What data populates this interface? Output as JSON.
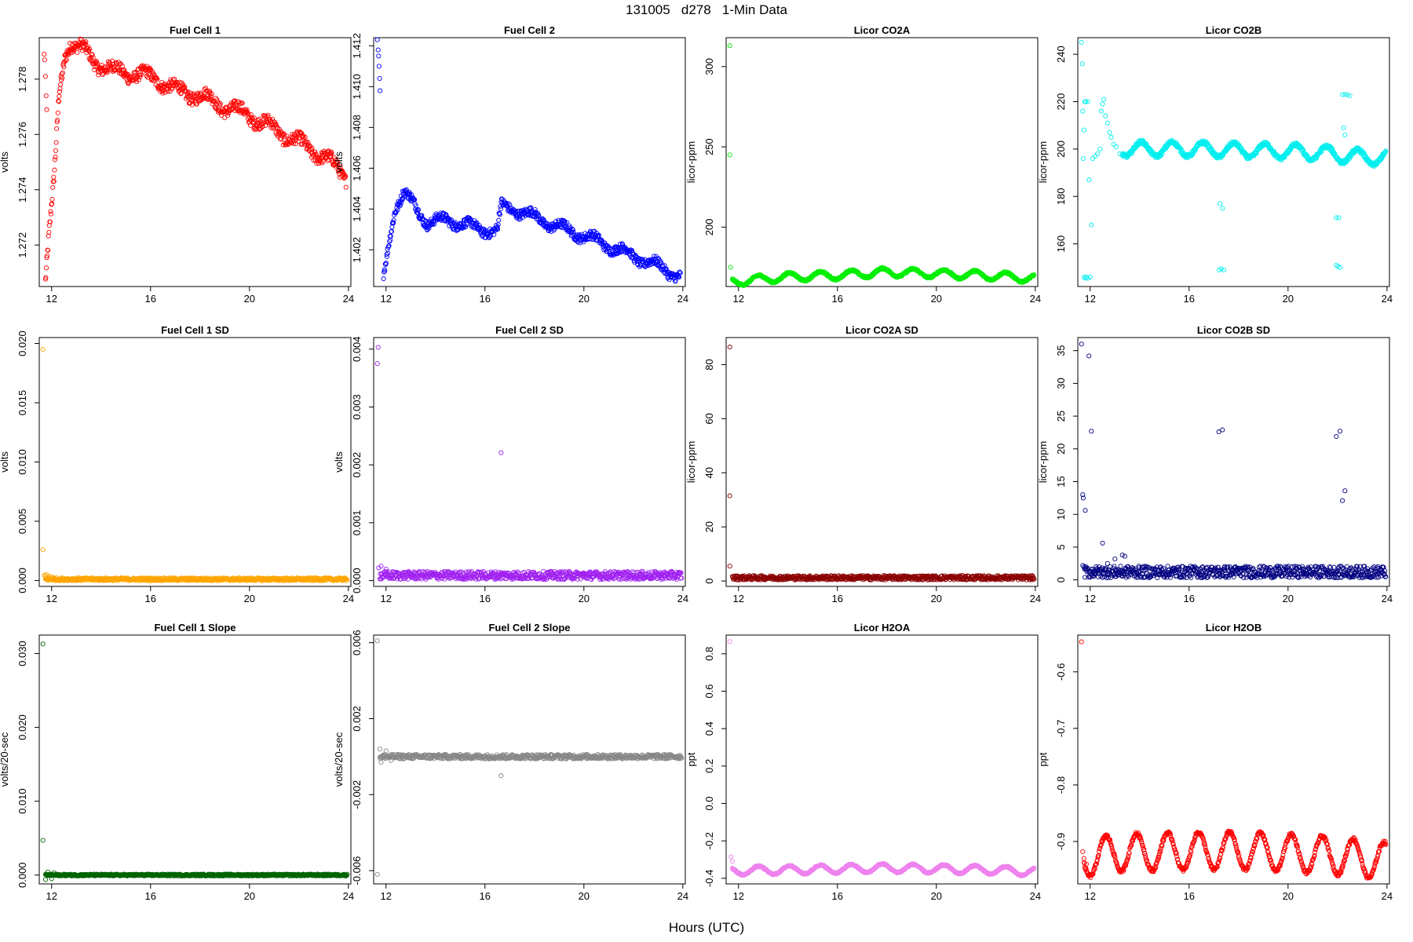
{
  "figure": {
    "title": "131005   d278   1-Min Data",
    "xlabel": "Hours (UTC)"
  },
  "chart_data": [
    {
      "type": "scatter",
      "title": "Fuel Cell 1",
      "ylabel": "volts",
      "color": "#ff0000",
      "xlim": [
        11.5,
        24.1
      ],
      "ylim": [
        1.2705,
        1.2795
      ],
      "xticks": [
        12,
        16,
        20,
        24
      ],
      "yticks": [
        1.272,
        1.274,
        1.276,
        1.278
      ],
      "ytick_labels": [
        "1.272",
        "1.274",
        "1.276",
        "1.278"
      ],
      "shape": {
        "kind": "trend",
        "points": [
          [
            11.75,
            1.2707
          ],
          [
            11.9,
            1.2725
          ],
          [
            12.1,
            1.2745
          ],
          [
            12.3,
            1.2775
          ],
          [
            12.55,
            1.2788
          ],
          [
            12.8,
            1.2792
          ],
          [
            13.2,
            1.2791
          ],
          [
            13.8,
            1.2786
          ],
          [
            14.5,
            1.2783
          ],
          [
            15.3,
            1.2782
          ],
          [
            16.3,
            1.278
          ],
          [
            17.0,
            1.2776
          ],
          [
            18.0,
            1.2774
          ],
          [
            19.0,
            1.277
          ],
          [
            20.0,
            1.2767
          ],
          [
            21.0,
            1.2762
          ],
          [
            22.0,
            1.2757
          ],
          [
            23.0,
            1.2752
          ],
          [
            23.9,
            1.2745
          ]
        ],
        "band": 0.00022,
        "wave_amp": 0.0002,
        "wave_period": 1.25,
        "wave_start": 13.0
      },
      "outliers": [
        [
          11.7,
          1.2789
        ],
        [
          11.72,
          1.2787
        ],
        [
          11.75,
          1.2781
        ],
        [
          11.78,
          1.2774
        ],
        [
          11.8,
          1.2769
        ]
      ]
    },
    {
      "type": "scatter",
      "title": "Fuel Cell 2",
      "ylabel": "volts",
      "color": "#0000ff",
      "xlim": [
        11.5,
        24.1
      ],
      "ylim": [
        1.4002,
        1.4124
      ],
      "xticks": [
        12,
        16,
        20,
        24
      ],
      "yticks": [
        1.402,
        1.404,
        1.406,
        1.408,
        1.41,
        1.412
      ],
      "ytick_labels": [
        "1.402",
        "1.404",
        "1.406",
        "1.408",
        "1.410",
        "1.412"
      ],
      "shape": {
        "kind": "trend",
        "points": [
          [
            11.9,
            1.4008
          ],
          [
            12.1,
            1.4022
          ],
          [
            12.35,
            1.4038
          ],
          [
            12.7,
            1.4047
          ],
          [
            13.1,
            1.4043
          ],
          [
            13.7,
            1.4033
          ],
          [
            14.5,
            1.4035
          ],
          [
            15.5,
            1.4031
          ],
          [
            16.5,
            1.4029
          ],
          [
            16.65,
            1.4041
          ],
          [
            17.2,
            1.404
          ],
          [
            18.0,
            1.4036
          ],
          [
            19.0,
            1.4031
          ],
          [
            20.0,
            1.4027
          ],
          [
            21.0,
            1.4022
          ],
          [
            22.0,
            1.4017
          ],
          [
            23.0,
            1.4012
          ],
          [
            23.9,
            1.4007
          ]
        ],
        "band": 0.00022,
        "wave_amp": 0.00022,
        "wave_period": 1.25,
        "wave_start": 12.6
      },
      "outliers": [
        [
          11.65,
          1.4123
        ],
        [
          11.68,
          1.4118
        ],
        [
          11.7,
          1.4115
        ],
        [
          11.72,
          1.411
        ],
        [
          11.74,
          1.4104
        ],
        [
          11.76,
          1.4098
        ]
      ]
    },
    {
      "type": "scatter",
      "title": "Licor CO2A",
      "ylabel": "licor-ppm",
      "color": "#00ee00",
      "xlim": [
        11.5,
        24.1
      ],
      "ylim": [
        163,
        318
      ],
      "xticks": [
        12,
        16,
        20,
        24
      ],
      "yticks": [
        200,
        250,
        300
      ],
      "ytick_labels": [
        "200",
        "250",
        "300"
      ],
      "shape": {
        "kind": "wave",
        "base": [
          [
            11.75,
            166
          ],
          [
            12.5,
            167
          ],
          [
            14.0,
            169
          ],
          [
            16.0,
            170
          ],
          [
            18.0,
            172
          ],
          [
            20.0,
            171
          ],
          [
            22.0,
            170
          ],
          [
            24.0,
            168
          ]
        ],
        "amp": 2.5,
        "period": 1.25,
        "band": 0.6
      },
      "outliers": [
        [
          11.65,
          313
        ],
        [
          11.65,
          245
        ],
        [
          11.68,
          175
        ]
      ]
    },
    {
      "type": "scatter",
      "title": "Licor CO2B",
      "ylabel": "licor-ppm",
      "color": "#00eeee",
      "xlim": [
        11.5,
        24.1
      ],
      "ylim": [
        142,
        247
      ],
      "xticks": [
        12,
        16,
        20,
        24
      ],
      "yticks": [
        160,
        180,
        200,
        220,
        240
      ],
      "ytick_labels": [
        "160",
        "180",
        "200",
        "220",
        "240"
      ],
      "shape": {
        "kind": "wave",
        "base": [
          [
            13.5,
            200
          ],
          [
            16,
            200
          ],
          [
            20,
            199
          ],
          [
            21.8,
            198
          ],
          [
            22.5,
            197
          ],
          [
            24,
            196
          ]
        ],
        "amp": 3.0,
        "period": 1.25,
        "band": 0.8,
        "start": 13.3
      },
      "outliers": [
        [
          11.65,
          245
        ],
        [
          11.68,
          236
        ],
        [
          11.7,
          216
        ],
        [
          11.72,
          196
        ],
        [
          11.75,
          208
        ],
        [
          11.78,
          220
        ],
        [
          11.82,
          220
        ],
        [
          11.9,
          220
        ],
        [
          11.95,
          187
        ],
        [
          12.05,
          168
        ],
        [
          12.1,
          196
        ],
        [
          12.2,
          197
        ],
        [
          12.3,
          198
        ],
        [
          12.4,
          200
        ],
        [
          12.45,
          216
        ],
        [
          12.5,
          219
        ],
        [
          12.55,
          221
        ],
        [
          12.62,
          214
        ],
        [
          12.7,
          211
        ],
        [
          12.78,
          207
        ],
        [
          12.85,
          205
        ],
        [
          12.95,
          202
        ],
        [
          13.05,
          201
        ],
        [
          13.2,
          198
        ],
        [
          11.75,
          146
        ],
        [
          11.8,
          145.5
        ],
        [
          11.85,
          146
        ],
        [
          11.9,
          145.5
        ],
        [
          12.0,
          146
        ],
        [
          17.25,
          177
        ],
        [
          17.35,
          175
        ],
        [
          17.22,
          149
        ],
        [
          17.3,
          149.5
        ],
        [
          17.4,
          149
        ],
        [
          21.95,
          171
        ],
        [
          22.05,
          171
        ],
        [
          21.95,
          151
        ],
        [
          22.02,
          150.5
        ],
        [
          22.1,
          150
        ],
        [
          22.25,
          209
        ],
        [
          22.3,
          206
        ],
        [
          22.2,
          223
        ],
        [
          22.3,
          223
        ],
        [
          22.4,
          223
        ],
        [
          22.5,
          222.5
        ]
      ]
    },
    {
      "type": "scatter",
      "title": "Fuel Cell 1 SD",
      "ylabel": "volts",
      "color": "#ffa500",
      "xlim": [
        11.5,
        24.1
      ],
      "ylim": [
        -0.0005,
        0.0205
      ],
      "xticks": [
        12,
        16,
        20,
        24
      ],
      "yticks": [
        0,
        0.005,
        0.01,
        0.015,
        0.02
      ],
      "ytick_labels": [
        "0.000",
        "0.005",
        "0.010",
        "0.015",
        "0.020"
      ],
      "shape": {
        "kind": "flat",
        "level": 0.0001,
        "band": 0.00012
      },
      "outliers": [
        [
          11.65,
          0.0195
        ],
        [
          11.65,
          0.0026
        ],
        [
          11.7,
          0.00045
        ],
        [
          11.75,
          0.0004
        ],
        [
          11.8,
          0.0005
        ],
        [
          11.9,
          0.00035
        ],
        [
          12.0,
          0.0003
        ],
        [
          12.1,
          0.00025
        ]
      ]
    },
    {
      "type": "scatter",
      "title": "Fuel Cell 2 SD",
      "ylabel": "volts",
      "color": "#a020f0",
      "xlim": [
        11.5,
        24.1
      ],
      "ylim": [
        -0.0001,
        0.0042
      ],
      "xticks": [
        12,
        16,
        20,
        24
      ],
      "yticks": [
        0,
        0.001,
        0.002,
        0.003,
        0.004
      ],
      "ytick_labels": [
        "0.000",
        "0.001",
        "0.002",
        "0.003",
        "0.004"
      ],
      "shape": {
        "kind": "flat",
        "level": 9e-05,
        "band": 7e-05
      },
      "outliers": [
        [
          11.68,
          0.00403
        ],
        [
          11.65,
          0.00375
        ],
        [
          16.65,
          0.00221
        ],
        [
          11.7,
          0.00022
        ],
        [
          11.8,
          0.00025
        ],
        [
          12.0,
          0.0002
        ]
      ]
    },
    {
      "type": "scatter",
      "title": "Licor CO2A SD",
      "ylabel": "licor-ppm",
      "color": "#8b0000",
      "xlim": [
        11.5,
        24.1
      ],
      "ylim": [
        -2,
        90
      ],
      "xticks": [
        12,
        16,
        20,
        24
      ],
      "yticks": [
        0,
        20,
        40,
        60,
        80
      ],
      "ytick_labels": [
        "0",
        "20",
        "40",
        "60",
        "80"
      ],
      "shape": {
        "kind": "flat",
        "level": 1.2,
        "band": 0.8
      },
      "outliers": [
        [
          11.65,
          86.5
        ],
        [
          11.65,
          31.5
        ],
        [
          11.65,
          5.5
        ]
      ]
    },
    {
      "type": "scatter",
      "title": "Licor CO2B SD",
      "ylabel": "licor-ppm",
      "color": "#000080",
      "xlim": [
        11.5,
        24.1
      ],
      "ylim": [
        -1,
        37
      ],
      "xticks": [
        12,
        16,
        20,
        24
      ],
      "yticks": [
        0,
        5,
        10,
        15,
        20,
        25,
        30,
        35
      ],
      "ytick_labels": [
        "0",
        "5",
        "10",
        "15",
        "20",
        "25",
        "30",
        "35"
      ],
      "shape": {
        "kind": "flat",
        "level": 1.2,
        "band": 0.9
      },
      "outliers": [
        [
          11.65,
          36
        ],
        [
          11.95,
          34.2
        ],
        [
          12.05,
          22.7
        ],
        [
          11.7,
          13
        ],
        [
          11.72,
          12.5
        ],
        [
          11.8,
          10.6
        ],
        [
          12.5,
          5.6
        ],
        [
          13.3,
          3.8
        ],
        [
          13.4,
          3.6
        ],
        [
          13.0,
          3.2
        ],
        [
          12.7,
          2.5
        ],
        [
          11.7,
          2.2
        ],
        [
          17.2,
          22.6
        ],
        [
          17.35,
          22.9
        ],
        [
          21.95,
          21.9
        ],
        [
          22.1,
          22.7
        ],
        [
          22.2,
          12.1
        ],
        [
          22.3,
          13.6
        ]
      ]
    },
    {
      "type": "scatter",
      "title": "Fuel Cell 1 Slope",
      "ylabel": "volts/20-sec",
      "color": "#006400",
      "xlim": [
        11.5,
        24.1
      ],
      "ylim": [
        -0.0012,
        0.0325
      ],
      "xticks": [
        12,
        16,
        20,
        24
      ],
      "yticks": [
        0,
        0.01,
        0.02,
        0.03
      ],
      "ytick_labels": [
        "0.000",
        "0.010",
        "0.020",
        "0.030"
      ],
      "shape": {
        "kind": "flat",
        "level": 0,
        "band": 0.00012
      },
      "outliers": [
        [
          11.65,
          0.0313
        ],
        [
          11.65,
          0.0047
        ],
        [
          11.75,
          -0.0006
        ],
        [
          11.85,
          0.0004
        ],
        [
          12.0,
          -0.0005
        ],
        [
          12.1,
          0.0003
        ]
      ]
    },
    {
      "type": "scatter",
      "title": "Fuel Cell 2 Slope",
      "ylabel": "volts/20-sec",
      "color": "#888888",
      "xlim": [
        11.5,
        24.1
      ],
      "ylim": [
        -0.0067,
        0.0064
      ],
      "xticks": [
        12,
        16,
        20,
        24
      ],
      "yticks": [
        -0.006,
        -0.002,
        0.002,
        0.006
      ],
      "ytick_labels": [
        "-0.006",
        "-0.002",
        "0.002",
        "0.006"
      ],
      "shape": {
        "kind": "flat",
        "level": 0,
        "band": 0.00012
      },
      "outliers": [
        [
          11.65,
          0.0061
        ],
        [
          11.65,
          -0.0062
        ],
        [
          16.65,
          -0.001
        ],
        [
          11.75,
          0.0004
        ],
        [
          11.8,
          -0.0003
        ],
        [
          12.0,
          0.0003
        ],
        [
          12.2,
          -0.0002
        ]
      ]
    },
    {
      "type": "scatter",
      "title": "Licor H2OA",
      "ylabel": "ppt",
      "color": "#ee82ee",
      "xlim": [
        11.5,
        24.1
      ],
      "ylim": [
        -0.43,
        0.9
      ],
      "xticks": [
        12,
        16,
        20,
        24
      ],
      "yticks": [
        -0.4,
        -0.2,
        0,
        0.2,
        0.4,
        0.6,
        0.8
      ],
      "ytick_labels": [
        "-0.4",
        "-0.2",
        "0.0",
        "0.2",
        "0.4",
        "0.6",
        "0.8"
      ],
      "shape": {
        "kind": "wave",
        "base": [
          [
            11.8,
            -0.36
          ],
          [
            14,
            -0.355
          ],
          [
            16,
            -0.35
          ],
          [
            18,
            -0.345
          ],
          [
            20,
            -0.35
          ],
          [
            22,
            -0.355
          ],
          [
            24,
            -0.365
          ]
        ],
        "amp": 0.022,
        "period": 1.25,
        "band": 0.004
      },
      "outliers": [
        [
          11.65,
          0.865
        ],
        [
          11.7,
          -0.285
        ],
        [
          11.75,
          -0.31
        ]
      ]
    },
    {
      "type": "scatter",
      "title": "Licor H2OB",
      "ylabel": "ppt",
      "color": "#ff0000",
      "xlim": [
        11.5,
        24.1
      ],
      "ylim": [
        -0.975,
        -0.535
      ],
      "xticks": [
        12,
        16,
        20,
        24
      ],
      "yticks": [
        -0.9,
        -0.8,
        -0.7,
        -0.6
      ],
      "ytick_labels": [
        "-0.9",
        "-0.8",
        "-0.7",
        "-0.6"
      ],
      "shape": {
        "kind": "wave",
        "base": [
          [
            11.8,
            -0.93
          ],
          [
            13,
            -0.92
          ],
          [
            16,
            -0.917
          ],
          [
            18,
            -0.916
          ],
          [
            20,
            -0.92
          ],
          [
            22,
            -0.925
          ],
          [
            24,
            -0.935
          ]
        ],
        "amp": 0.033,
        "period": 1.25,
        "band": 0.003,
        "phase_shift": 0.9
      },
      "outliers": [
        [
          11.65,
          -0.547
        ],
        [
          11.7,
          -0.918
        ],
        [
          11.75,
          -0.93
        ],
        [
          11.85,
          -0.94
        ]
      ]
    }
  ]
}
